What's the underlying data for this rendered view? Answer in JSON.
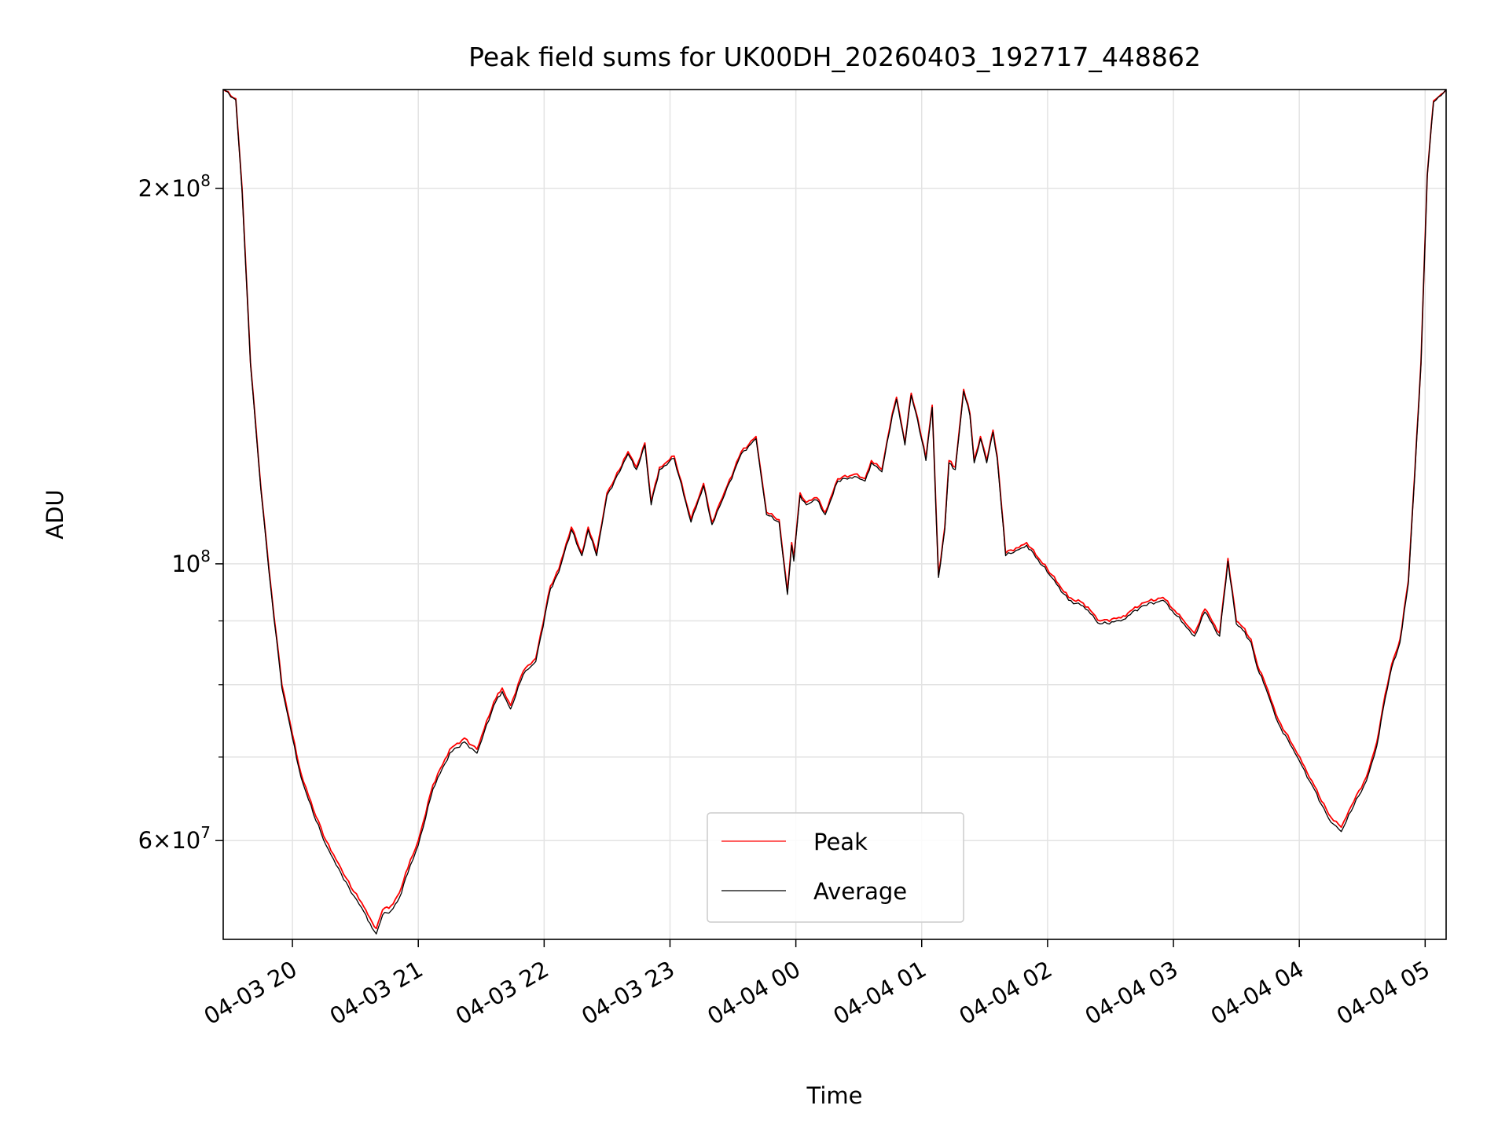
{
  "chart_data": {
    "type": "line",
    "title": "Peak field sums for UK00DH_20260403_192717_448862",
    "xlabel": "Time",
    "ylabel": "ADU",
    "yscale": "log",
    "grid": true,
    "legend_position": "lower-center",
    "x_range": [
      "2026-04-03 19:27",
      "2026-04-04 05:10"
    ],
    "ylim": [
      50000000,
      240000000
    ],
    "x_ticks": [
      {
        "at": "2026-04-03 20:00",
        "label": "04-03 20"
      },
      {
        "at": "2026-04-03 21:00",
        "label": "04-03 21"
      },
      {
        "at": "2026-04-03 22:00",
        "label": "04-03 22"
      },
      {
        "at": "2026-04-03 23:00",
        "label": "04-03 23"
      },
      {
        "at": "2026-04-04 00:00",
        "label": "04-04 00"
      },
      {
        "at": "2026-04-04 01:00",
        "label": "04-04 01"
      },
      {
        "at": "2026-04-04 02:00",
        "label": "04-04 02"
      },
      {
        "at": "2026-04-04 03:00",
        "label": "04-04 03"
      },
      {
        "at": "2026-04-04 04:00",
        "label": "04-04 04"
      },
      {
        "at": "2026-04-04 05:00",
        "label": "04-04 05"
      }
    ],
    "y_ticks": [
      {
        "value": 60000000,
        "base": "6",
        "exp": "7"
      },
      {
        "value": 100000000,
        "base": "",
        "exp": "8"
      },
      {
        "value": 200000000,
        "base": "2",
        "exp": "8"
      }
    ],
    "y_minor_ticks": [
      70000000,
      80000000,
      90000000
    ],
    "x": [
      "2026-04-03 19:27",
      "2026-04-03 19:33",
      "2026-04-03 19:36",
      "2026-04-03 19:40",
      "2026-04-03 19:45",
      "2026-04-03 19:50",
      "2026-04-03 19:55",
      "2026-04-03 20:00",
      "2026-04-03 20:04",
      "2026-04-03 20:10",
      "2026-04-03 20:16",
      "2026-04-03 20:22",
      "2026-04-03 20:28",
      "2026-04-03 20:33",
      "2026-04-03 20:37",
      "2026-04-03 20:40",
      "2026-04-03 20:43",
      "2026-04-03 20:47",
      "2026-04-03 20:51",
      "2026-04-03 20:55",
      "2026-04-03 21:00",
      "2026-04-03 21:07",
      "2026-04-03 21:15",
      "2026-04-03 21:22",
      "2026-04-03 21:28",
      "2026-04-03 21:36",
      "2026-04-03 21:40",
      "2026-04-03 21:44",
      "2026-04-03 21:50",
      "2026-04-03 21:56",
      "2026-04-03 22:03",
      "2026-04-03 22:07",
      "2026-04-03 22:13",
      "2026-04-03 22:18",
      "2026-04-03 22:21",
      "2026-04-03 22:25",
      "2026-04-03 22:30",
      "2026-04-03 22:36",
      "2026-04-03 22:40",
      "2026-04-03 22:44",
      "2026-04-03 22:48",
      "2026-04-03 22:51",
      "2026-04-03 22:55",
      "2026-04-03 23:02",
      "2026-04-03 23:10",
      "2026-04-03 23:16",
      "2026-04-03 23:20",
      "2026-04-03 23:25",
      "2026-04-03 23:34",
      "2026-04-03 23:41",
      "2026-04-03 23:46",
      "2026-04-03 23:52",
      "2026-04-03 23:56",
      "2026-04-03 23:58",
      "2026-04-03 23:59",
      "2026-04-04 00:02",
      "2026-04-04 00:05",
      "2026-04-04 00:10",
      "2026-04-04 00:14",
      "2026-04-04 00:20",
      "2026-04-04 00:28",
      "2026-04-04 00:33",
      "2026-04-04 00:36",
      "2026-04-04 00:41",
      "2026-04-04 00:46",
      "2026-04-04 00:48",
      "2026-04-04 00:52",
      "2026-04-04 00:55",
      "2026-04-04 00:58",
      "2026-04-04 01:02",
      "2026-04-04 01:05",
      "2026-04-04 01:08",
      "2026-04-04 01:11",
      "2026-04-04 01:13",
      "2026-04-04 01:16",
      "2026-04-04 01:20",
      "2026-04-04 01:23",
      "2026-04-04 01:25",
      "2026-04-04 01:28",
      "2026-04-04 01:31",
      "2026-04-04 01:34",
      "2026-04-04 01:36",
      "2026-04-04 01:40",
      "2026-04-04 01:45",
      "2026-04-04 01:50",
      "2026-04-04 02:02",
      "2026-04-04 02:10",
      "2026-04-04 02:17",
      "2026-04-04 02:25",
      "2026-04-04 02:35",
      "2026-04-04 02:45",
      "2026-04-04 02:55",
      "2026-04-04 03:05",
      "2026-04-04 03:10",
      "2026-04-04 03:15",
      "2026-04-04 03:22",
      "2026-04-04 03:26",
      "2026-04-04 03:30",
      "2026-04-04 03:33",
      "2026-04-04 03:37",
      "2026-04-04 03:40",
      "2026-04-04 03:44",
      "2026-04-04 03:50",
      "2026-04-04 03:58",
      "2026-04-04 04:06",
      "2026-04-04 04:14",
      "2026-04-04 04:20",
      "2026-04-04 04:26",
      "2026-04-04 04:32",
      "2026-04-04 04:37",
      "2026-04-04 04:40",
      "2026-04-04 04:44",
      "2026-04-04 04:48",
      "2026-04-04 04:52",
      "2026-04-04 04:55",
      "2026-04-04 04:58",
      "2026-04-04 05:01",
      "2026-04-04 05:04",
      "2026-04-04 05:10"
    ],
    "series": [
      {
        "name": "Peak",
        "color": "#ff0000",
        "values": [
          240000000,
          236000000,
          200000000,
          145000000,
          115000000,
          95000000,
          80000000,
          73000000,
          68000000,
          63500000,
          60000000,
          57500000,
          55000000,
          53500000,
          52000000,
          51000000,
          52800000,
          53200000,
          54500000,
          57000000,
          60000000,
          66500000,
          71000000,
          72500000,
          71000000,
          77500000,
          79500000,
          77000000,
          82000000,
          84000000,
          96000000,
          99000000,
          107000000,
          102000000,
          107000000,
          102000000,
          114000000,
          119000000,
          123000000,
          119500000,
          125000000,
          112000000,
          119500000,
          122000000,
          108500000,
          116000000,
          108000000,
          113000000,
          123000000,
          126500000,
          110000000,
          108500000,
          95000000,
          104000000,
          101000000,
          114000000,
          112000000,
          113000000,
          110000000,
          117000000,
          118000000,
          117000000,
          121000000,
          119000000,
          132000000,
          136000000,
          125000000,
          137000000,
          131000000,
          121500000,
          134000000,
          98000000,
          107000000,
          121000000,
          119500000,
          138000000,
          132000000,
          121000000,
          126500000,
          121000000,
          128000000,
          122000000,
          102000000,
          103000000,
          104000000,
          98000000,
          94000000,
          93000000,
          90000000,
          90500000,
          93000000,
          94000000,
          90000000,
          88000000,
          92000000,
          88000000,
          101000000,
          90000000,
          89000000,
          87000000,
          83000000,
          80000000,
          75000000,
          71000000,
          67000000,
          63000000,
          61500000,
          64500000,
          67500000,
          72000000,
          77000000,
          83000000,
          87000000,
          97000000,
          118000000,
          145000000,
          205000000,
          235000000,
          240000000
        ]
      },
      {
        "name": "Average",
        "color": "#000000",
        "values": [
          240000000,
          235500000,
          199000000,
          144500000,
          114500000,
          94500000,
          79500000,
          72500000,
          67500000,
          63000000,
          59500000,
          57000000,
          54500000,
          53000000,
          51500000,
          50500000,
          52300000,
          52700000,
          54000000,
          56500000,
          59500000,
          66000000,
          70500000,
          72000000,
          70500000,
          77000000,
          79000000,
          76500000,
          81500000,
          83500000,
          95500000,
          98500000,
          106500000,
          101500000,
          106500000,
          101500000,
          113500000,
          118500000,
          122500000,
          119000000,
          124500000,
          111500000,
          119000000,
          121500000,
          108000000,
          115500000,
          107500000,
          112500000,
          122500000,
          126000000,
          109500000,
          108000000,
          94500000,
          103500000,
          100500000,
          113500000,
          111500000,
          112500000,
          109500000,
          116500000,
          117500000,
          116500000,
          120500000,
          118500000,
          131500000,
          135500000,
          124500000,
          136500000,
          130500000,
          121000000,
          133500000,
          97500000,
          106500000,
          120500000,
          119000000,
          137500000,
          131500000,
          120500000,
          126000000,
          120500000,
          127500000,
          121500000,
          101500000,
          102500000,
          103500000,
          97500000,
          93500000,
          92500000,
          89500000,
          90000000,
          92500000,
          93500000,
          89500000,
          87500000,
          91500000,
          87500000,
          100500000,
          89500000,
          88500000,
          86500000,
          82500000,
          79500000,
          74500000,
          70500000,
          66500000,
          62500000,
          61000000,
          64000000,
          67000000,
          71500000,
          76500000,
          82500000,
          86500000,
          96500000,
          117500000,
          144500000,
          204500000,
          234500000,
          240000000
        ]
      }
    ]
  }
}
